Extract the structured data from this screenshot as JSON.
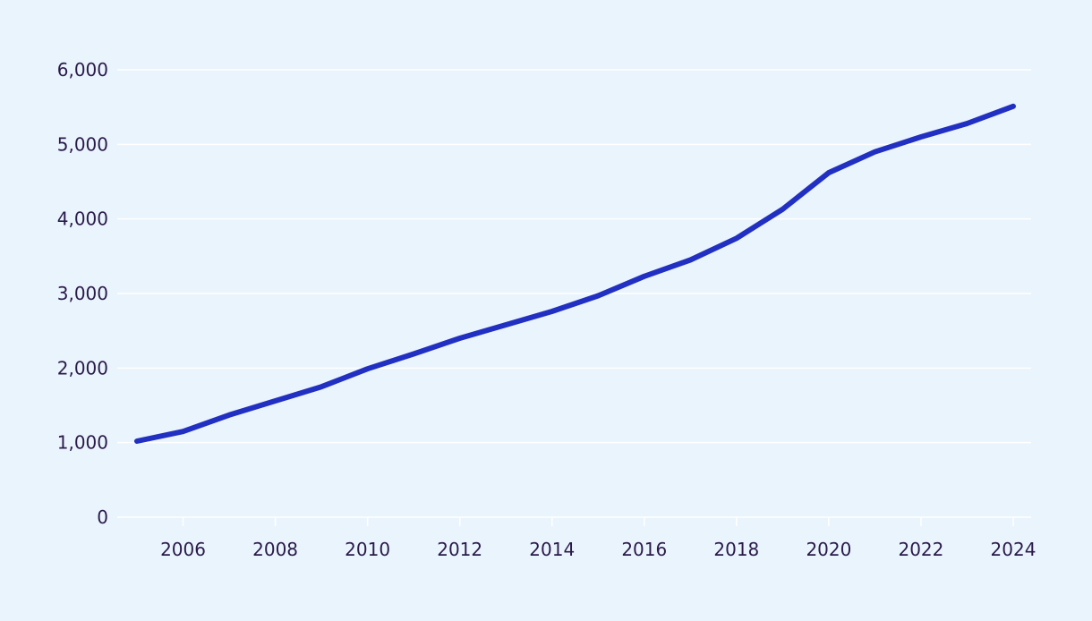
{
  "colors": {
    "background": "#eaf4fd",
    "line": "#2130c2",
    "grid": "#ffffff",
    "text": "#2a1a4a"
  },
  "chart_data": {
    "type": "line",
    "title": "",
    "xlabel": "",
    "ylabel": "",
    "grid": true,
    "legend": "none",
    "xlim": [
      2005,
      2024
    ],
    "ylim": [
      0,
      6000
    ],
    "x_ticks": [
      2006,
      2008,
      2010,
      2012,
      2014,
      2016,
      2018,
      2020,
      2022,
      2024
    ],
    "x_tick_labels": [
      "2006",
      "2008",
      "2010",
      "2012",
      "2014",
      "2016",
      "2018",
      "2020",
      "2022",
      "2024"
    ],
    "y_ticks": [
      0,
      1000,
      2000,
      3000,
      4000,
      5000,
      6000
    ],
    "y_tick_labels": [
      "0",
      "1,000",
      "2,000",
      "3,000",
      "4,000",
      "5,000",
      "6,000"
    ],
    "series": [
      {
        "x": [
          2005,
          2006,
          2007,
          2008,
          2009,
          2010,
          2011,
          2012,
          2013,
          2014,
          2015,
          2016,
          2017,
          2018,
          2019,
          2020,
          2021,
          2022,
          2023,
          2024
        ],
        "values": [
          1020,
          1150,
          1370,
          1560,
          1750,
          1990,
          2190,
          2400,
          2580,
          2760,
          2970,
          3230,
          3450,
          3740,
          4130,
          4620,
          4900,
          5100,
          5280,
          5510
        ]
      }
    ]
  }
}
